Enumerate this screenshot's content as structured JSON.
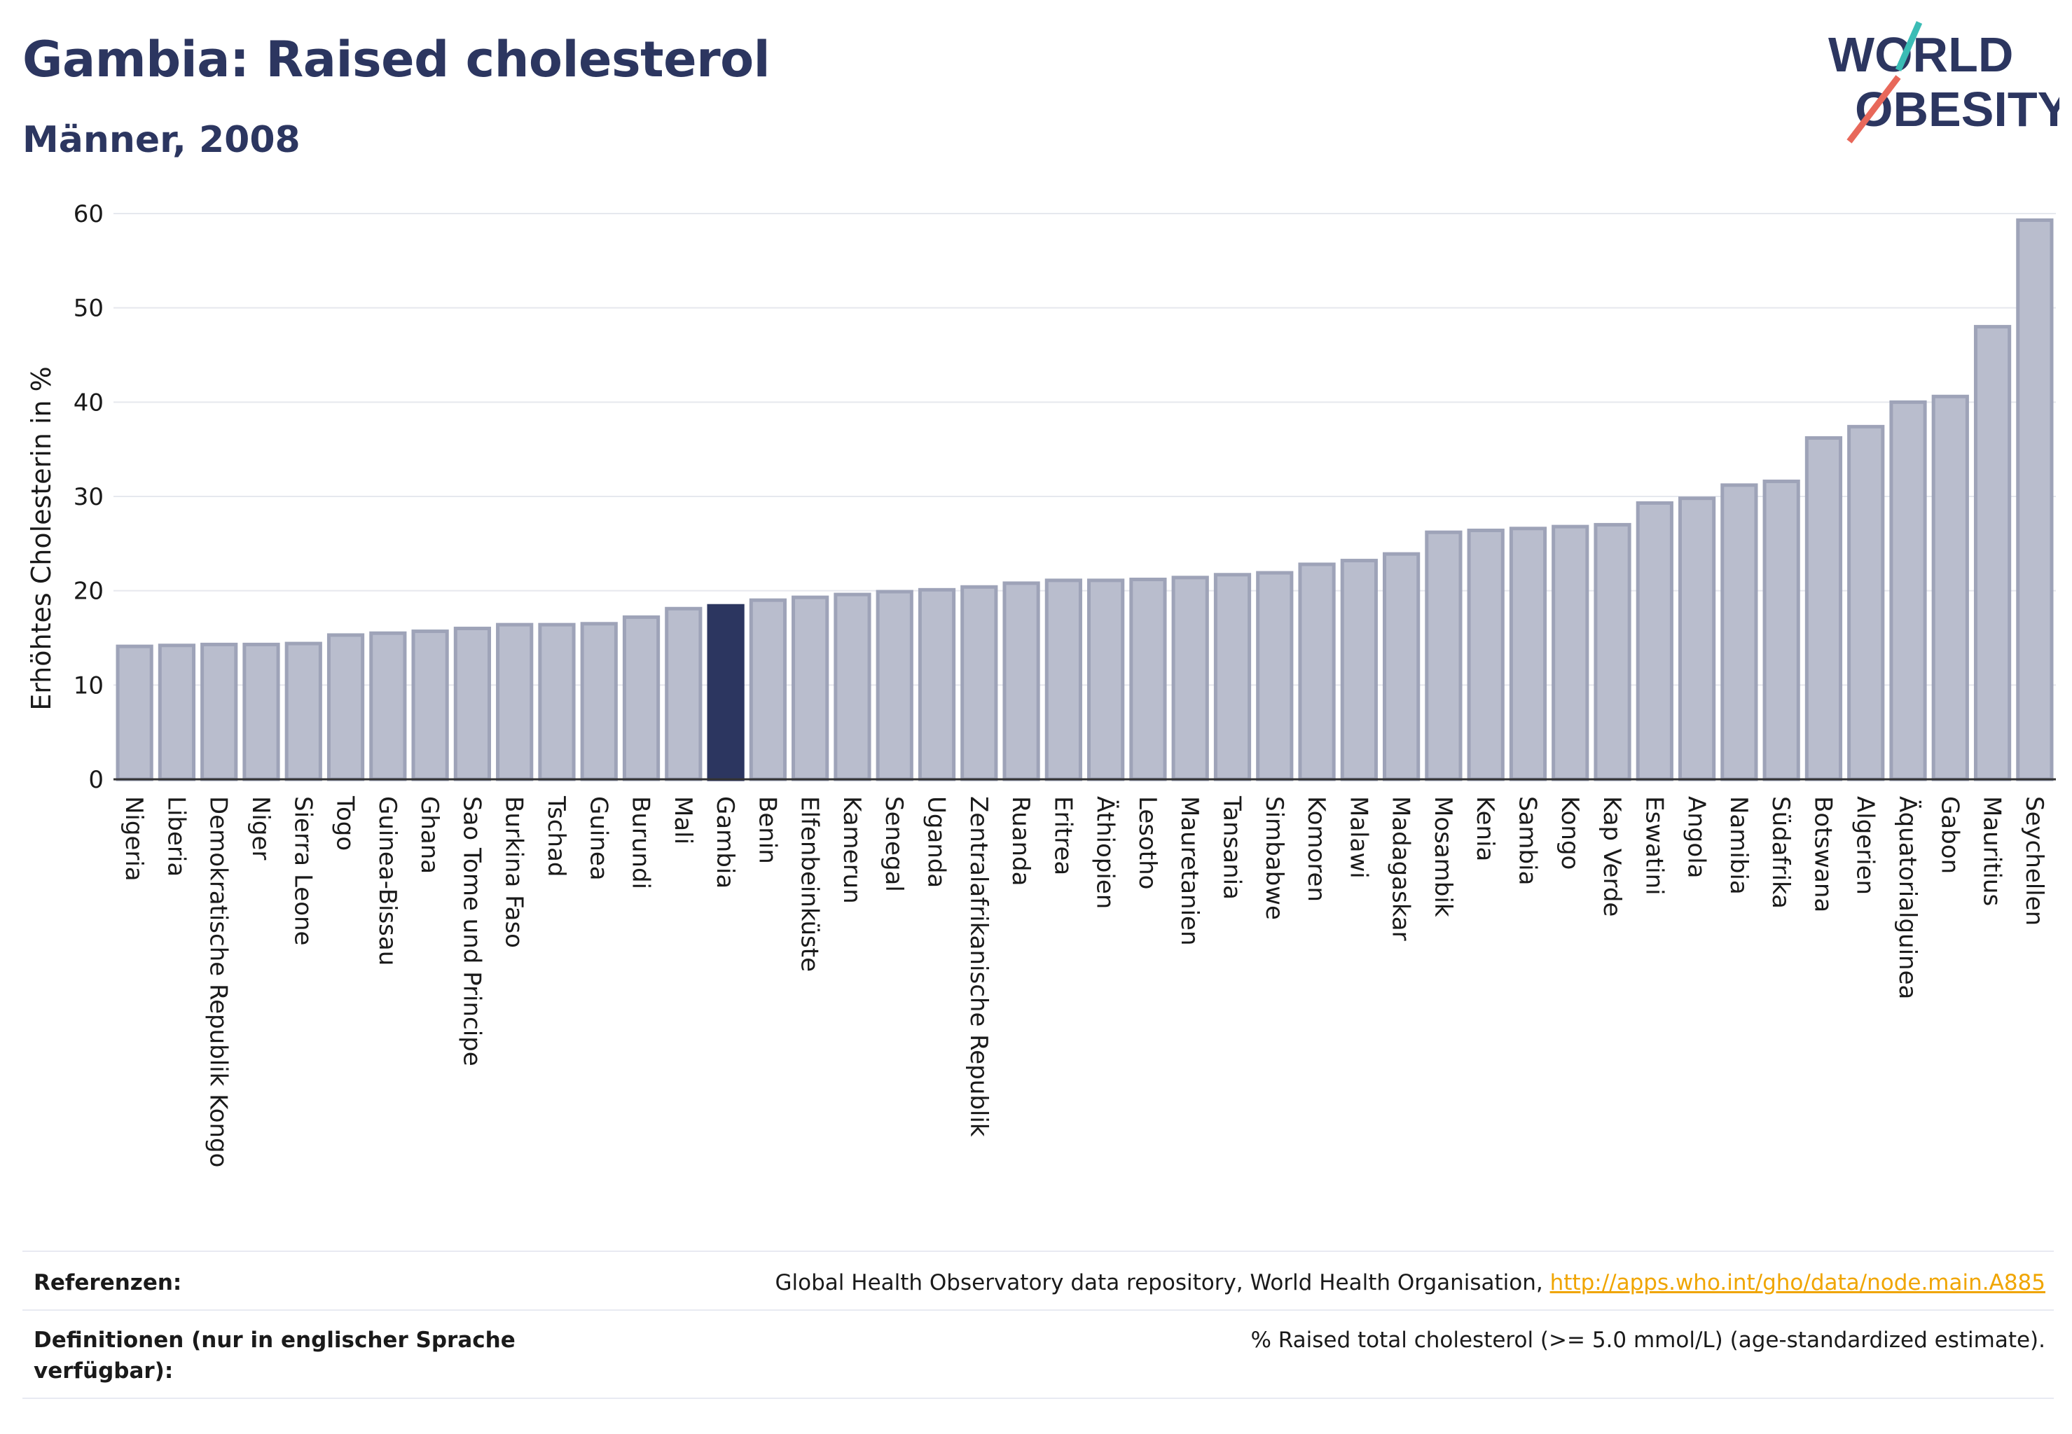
{
  "header": {
    "title": "Gambia: Raised cholesterol",
    "subtitle": "Männer, 2008"
  },
  "logo": {
    "line1": "WORLD",
    "line2": "OBESITY"
  },
  "colors": {
    "bar": "#b9bdcd",
    "bar_stroke": "#9ea3b8",
    "highlight": "#2c3660",
    "title": "#2c3660",
    "grid": "#e6e8ee",
    "link": "#f0a500"
  },
  "chart_data": {
    "type": "bar",
    "ylabel": "Erhöhtes Cholesterin in %",
    "ylim": [
      0,
      60
    ],
    "yticks": [
      0,
      10,
      20,
      30,
      40,
      50,
      60
    ],
    "highlight": "Gambia",
    "categories": [
      "Nigeria",
      "Liberia",
      "Demokratische Republik Kongo",
      "Niger",
      "Sierra Leone",
      "Togo",
      "Guinea-Bissau",
      "Ghana",
      "Sao Tome und Principe",
      "Burkina Faso",
      "Tschad",
      "Guinea",
      "Burundi",
      "Mali",
      "Gambia",
      "Benin",
      "Elfenbeinküste",
      "Kamerun",
      "Senegal",
      "Uganda",
      "Zentralafrikanische Republik",
      "Ruanda",
      "Eritrea",
      "Äthiopien",
      "Lesotho",
      "Mauretanien",
      "Tansania",
      "Simbabwe",
      "Komoren",
      "Malawi",
      "Madagaskar",
      "Mosambik",
      "Kenia",
      "Sambia",
      "Kongo",
      "Kap Verde",
      "Eswatini",
      "Angola",
      "Namibia",
      "Südafrika",
      "Botswana",
      "Algerien",
      "Äquatorialguinea",
      "Gabon",
      "Mauritius",
      "Seychellen"
    ],
    "values": [
      14.1,
      14.2,
      14.3,
      14.3,
      14.4,
      15.3,
      15.5,
      15.7,
      16.0,
      16.4,
      16.4,
      16.5,
      17.2,
      18.1,
      18.4,
      19.0,
      19.3,
      19.6,
      19.9,
      20.1,
      20.4,
      20.8,
      21.1,
      21.1,
      21.2,
      21.4,
      21.7,
      21.9,
      22.8,
      23.2,
      23.9,
      26.2,
      26.4,
      26.6,
      26.8,
      27.0,
      29.3,
      29.8,
      31.2,
      31.6,
      36.2,
      37.4,
      40.0,
      40.6,
      48.0,
      59.3
    ]
  },
  "footer": {
    "references_label": "Referenzen:",
    "references_text": "Global Health Observatory data repository, World Health Organisation, ",
    "references_link": "http://apps.who.int/gho/data/node.main.A885",
    "definitions_label": "Definitionen (nur in englischer Sprache verfügbar):",
    "definitions_text": "% Raised total cholesterol (>= 5.0 mmol/L) (age-standardized estimate)."
  }
}
